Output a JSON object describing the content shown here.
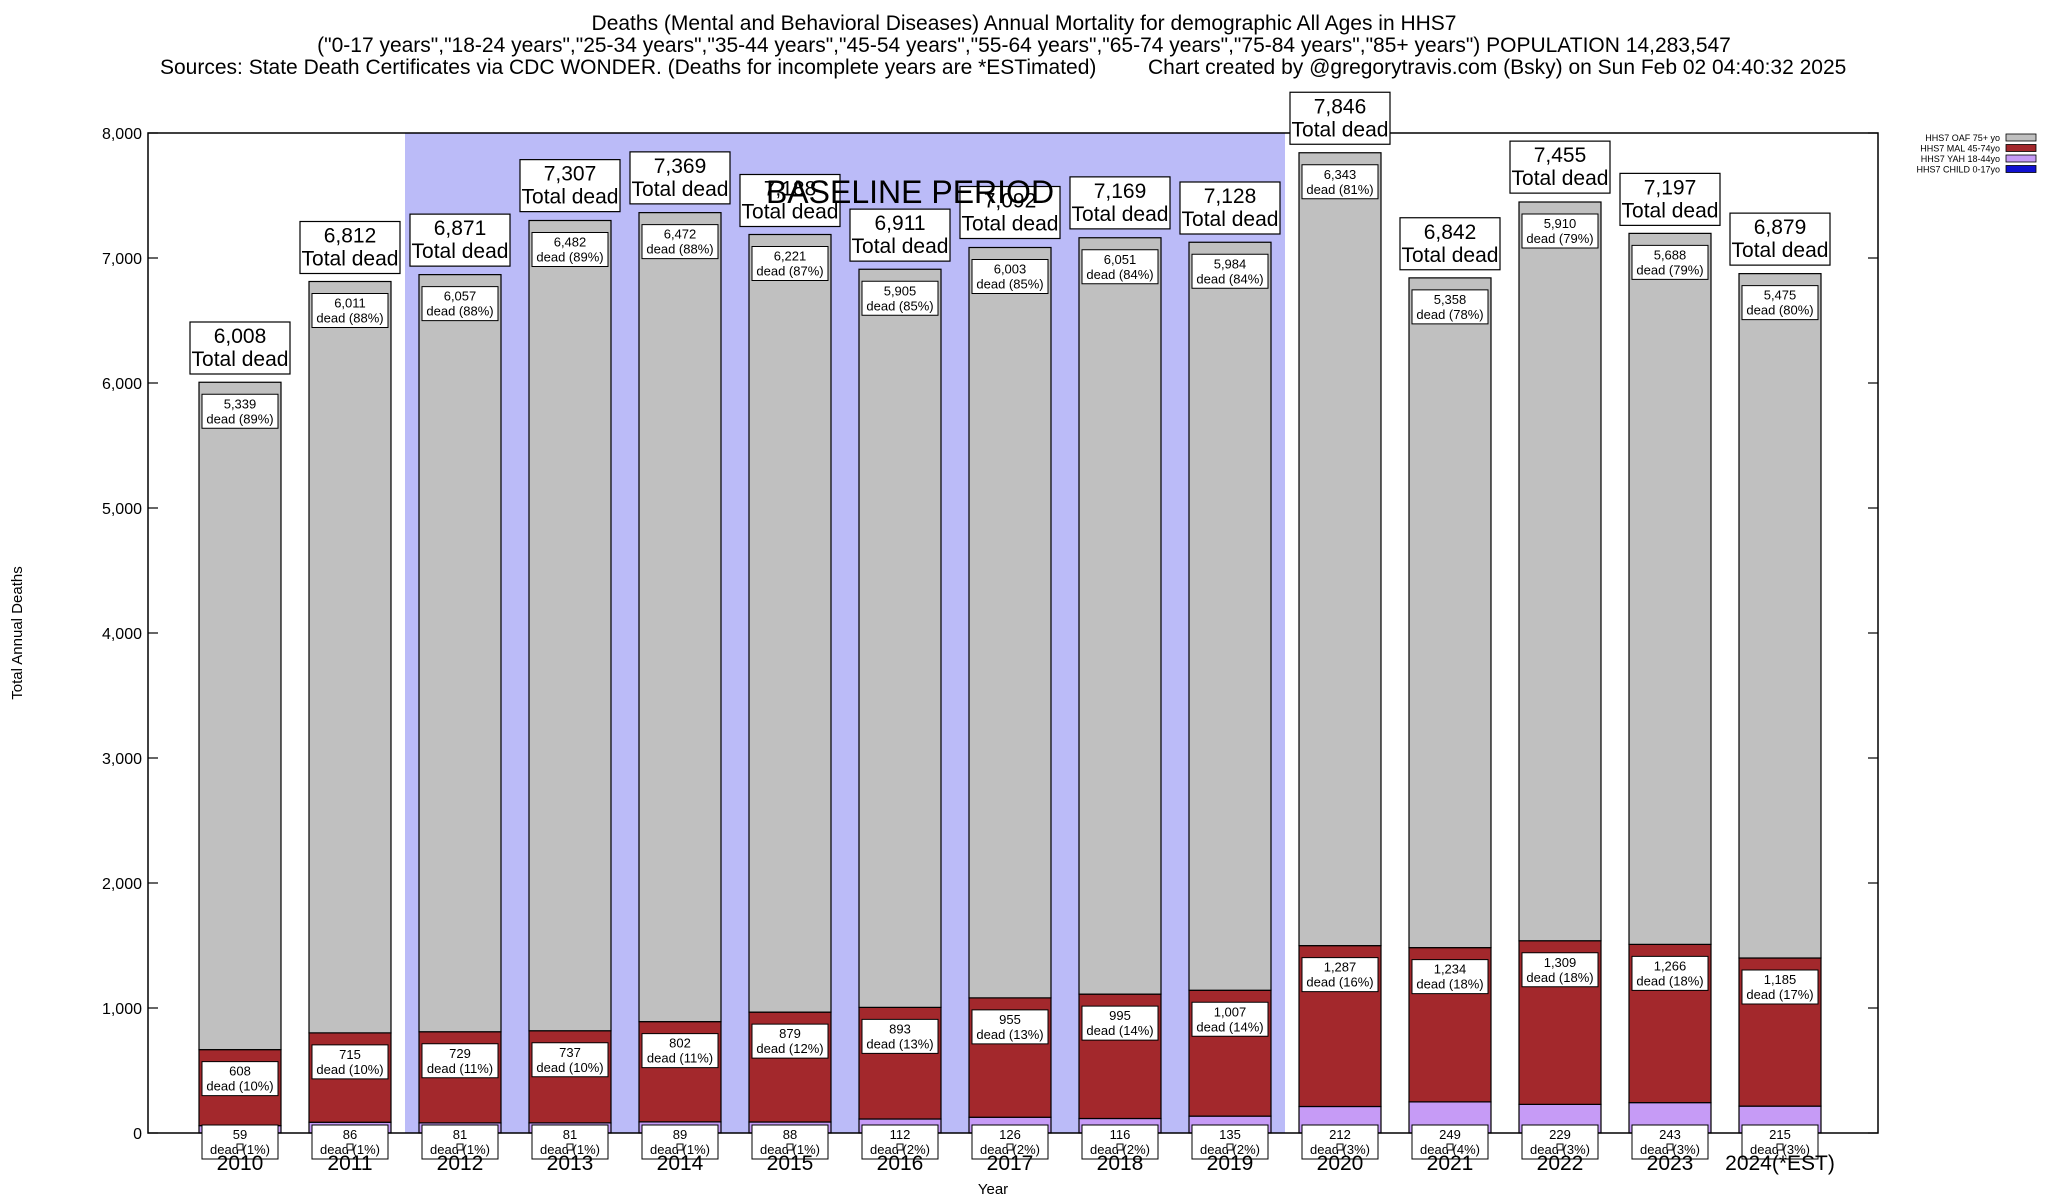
{
  "header": {
    "title": "Deaths (Mental and Behavioral Diseases) Annual Mortality for demographic All Ages in HHS7",
    "subtitle": "(\"0-17 years\",\"18-24 years\",\"25-34 years\",\"35-44 years\",\"45-54 years\",\"55-64 years\",\"65-74 years\",\"75-84 years\",\"85+ years\") POPULATION 14,283,547",
    "sources": "Sources: State Death Certificates via CDC WONDER. (Deaths for incomplete years are *ESTimated)",
    "credit": "Chart created by @gregorytravis.com (Bsky) on Sun Feb 02 04:40:32 2025"
  },
  "chart_data": {
    "type": "bar",
    "stacked": true,
    "xlabel": "Year",
    "ylabel": "Total Annual Deaths",
    "ylim": [
      0,
      8000
    ],
    "yticks": [
      0,
      1000,
      2000,
      3000,
      4000,
      5000,
      6000,
      7000,
      8000
    ],
    "ytick_labels": [
      "0",
      "1,000",
      "2,000",
      "3,000",
      "4,000",
      "5,000",
      "6,000",
      "7,000",
      "8,000"
    ],
    "grid": false,
    "legend_position": "top-right",
    "categories": [
      "2010",
      "2011",
      "2012",
      "2013",
      "2014",
      "2015",
      "2016",
      "2017",
      "2018",
      "2019",
      "2020",
      "2021",
      "2022",
      "2023",
      "2024(*EST)"
    ],
    "baseline_period": {
      "label": "BASELINE PERIOD",
      "from": "2012",
      "to": "2019",
      "color": "#bbbbf8"
    },
    "total_label_suffix": "Total dead",
    "segment_label_prefix": "dead",
    "totals": [
      6008,
      6812,
      6871,
      7307,
      7369,
      7188,
      6911,
      7092,
      7169,
      7128,
      7846,
      6842,
      7455,
      7197,
      6879
    ],
    "total_labels": [
      "6,008",
      "6,812",
      "6,871",
      "7,307",
      "7,369",
      "7,188",
      "6,911",
      "7,092",
      "7,169",
      "7,128",
      "7,846",
      "6,842",
      "7,455",
      "7,197",
      "6,879"
    ],
    "series": [
      {
        "name": "HHS7 CHILD 0-17yo",
        "color": "#1010d0",
        "values": [
          0,
          0,
          0,
          0,
          0,
          0,
          0,
          0,
          0,
          0,
          0,
          0,
          0,
          0,
          0
        ],
        "labels": [
          "",
          "",
          "",
          "",
          "",
          "",
          "",
          "",
          "",
          "",
          "",
          "",
          "",
          "",
          ""
        ],
        "pct": [
          "",
          "",
          "",
          "",
          "",
          "",
          "",
          "",
          "",
          "",
          "",
          "",
          "",
          "",
          ""
        ]
      },
      {
        "name": "HHS7 YAH 18-44yo",
        "color": "#c69bf6",
        "values": [
          59,
          86,
          81,
          81,
          89,
          88,
          112,
          126,
          116,
          135,
          212,
          249,
          229,
          243,
          215
        ],
        "labels": [
          "59",
          "86",
          "81",
          "81",
          "89",
          "88",
          "112",
          "126",
          "116",
          "135",
          "212",
          "249",
          "229",
          "243",
          "215"
        ],
        "pct": [
          "1%",
          "1%",
          "1%",
          "1%",
          "1%",
          "1%",
          "2%",
          "2%",
          "2%",
          "2%",
          "3%",
          "4%",
          "3%",
          "3%",
          "3%"
        ]
      },
      {
        "name": "HHS7 MAL 45-74yo",
        "color": "#a3282c",
        "values": [
          608,
          715,
          729,
          737,
          802,
          879,
          893,
          955,
          995,
          1007,
          1287,
          1234,
          1309,
          1266,
          1185
        ],
        "labels": [
          "608",
          "715",
          "729",
          "737",
          "802",
          "879",
          "893",
          "955",
          "995",
          "1,007",
          "1,287",
          "1,234",
          "1,309",
          "1,266",
          "1,185"
        ],
        "pct": [
          "10%",
          "10%",
          "11%",
          "10%",
          "11%",
          "12%",
          "13%",
          "13%",
          "14%",
          "14%",
          "16%",
          "18%",
          "18%",
          "18%",
          "17%"
        ]
      },
      {
        "name": "HHS7 OAF 75+ yo",
        "color": "#c0c0c0",
        "values": [
          5339,
          6011,
          6057,
          6482,
          6472,
          6221,
          5905,
          6003,
          6051,
          5984,
          6343,
          5358,
          5910,
          5688,
          5475
        ],
        "labels": [
          "5,339",
          "6,011",
          "6,057",
          "6,482",
          "6,472",
          "6,221",
          "5,905",
          "6,003",
          "6,051",
          "5,984",
          "6,343",
          "5,358",
          "5,910",
          "5,688",
          "5,475"
        ],
        "pct": [
          "89%",
          "88%",
          "88%",
          "89%",
          "88%",
          "87%",
          "85%",
          "85%",
          "84%",
          "84%",
          "81%",
          "78%",
          "79%",
          "79%",
          "80%"
        ]
      }
    ],
    "legend_order": [
      "HHS7 OAF 75+ yo",
      "HHS7 MAL 45-74yo",
      "HHS7 YAH 18-44yo",
      "HHS7 CHILD 0-17yo"
    ]
  }
}
